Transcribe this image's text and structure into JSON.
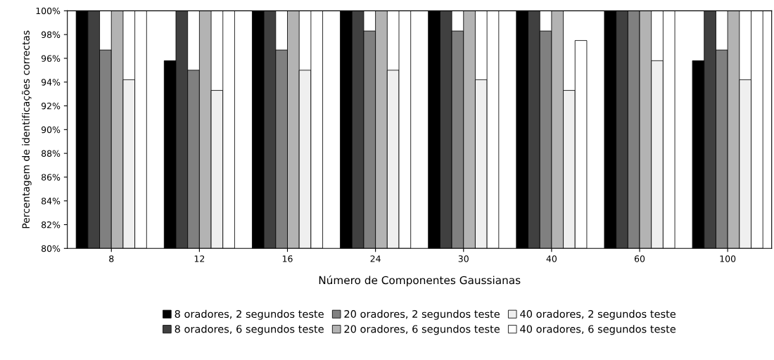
{
  "chart_data": {
    "type": "bar",
    "xlabel": "Número de Componentes Gaussianas",
    "ylabel": "Percentagem de identificações correctas",
    "categories": [
      "8",
      "12",
      "16",
      "24",
      "30",
      "40",
      "60",
      "100"
    ],
    "ylim": [
      80,
      100
    ],
    "yticks": [
      {
        "value": 80,
        "label": "80%"
      },
      {
        "value": 82,
        "label": "82%"
      },
      {
        "value": 84,
        "label": "84%"
      },
      {
        "value": 86,
        "label": "86%"
      },
      {
        "value": 88,
        "label": "88%"
      },
      {
        "value": 90,
        "label": "90%"
      },
      {
        "value": 92,
        "label": "92%"
      },
      {
        "value": 94,
        "label": "94%"
      },
      {
        "value": 96,
        "label": "96%"
      },
      {
        "value": 98,
        "label": "98%"
      },
      {
        "value": 100,
        "label": "100%"
      }
    ],
    "grid": false,
    "legend": "bottom",
    "series": [
      {
        "name": "8 oradores, 2 segundos teste",
        "color": "#000000",
        "values": [
          100,
          95.8,
          100,
          100,
          100,
          100,
          100,
          95.8
        ]
      },
      {
        "name": "8 oradores, 6 segundos teste",
        "color": "#404040",
        "values": [
          100,
          100,
          100,
          100,
          100,
          100,
          100,
          100
        ]
      },
      {
        "name": "20 oradores, 2 segundos teste",
        "color": "#808080",
        "values": [
          96.7,
          95,
          96.7,
          98.3,
          98.3,
          98.3,
          100,
          96.7
        ]
      },
      {
        "name": "20 oradores, 6 segundos teste",
        "color": "#b3b3b3",
        "values": [
          100,
          100,
          100,
          100,
          100,
          100,
          100,
          100
        ]
      },
      {
        "name": "40 oradores, 2 segundos teste",
        "color": "#efefef",
        "values": [
          94.2,
          93.3,
          95,
          95,
          94.2,
          93.3,
          95.8,
          94.2
        ]
      },
      {
        "name": "40 oradores, 6 segundos teste",
        "color": "#ffffff",
        "values": [
          100,
          100,
          100,
          100,
          100,
          97.5,
          100,
          100
        ]
      }
    ]
  }
}
